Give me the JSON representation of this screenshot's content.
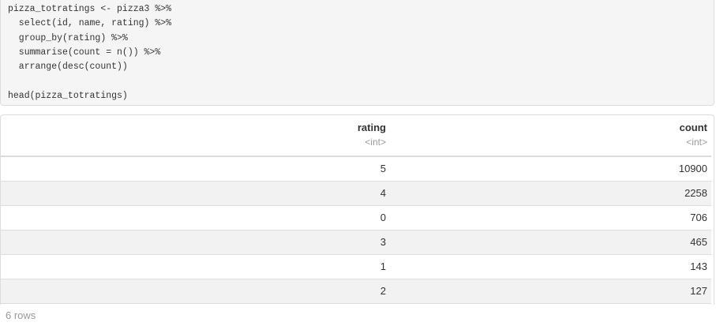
{
  "code": "pizza_totratings <- pizza3 %>%\n  select(id, name, rating) %>%\n  group_by(rating) %>%\n  summarise(count = n()) %>%\n  arrange(desc(count))\n\nhead(pizza_totratings)",
  "table": {
    "columns": [
      {
        "name": "rating",
        "type": "<int>"
      },
      {
        "name": "count",
        "type": "<int>"
      }
    ],
    "rows": [
      [
        "5",
        "10900"
      ],
      [
        "4",
        "2258"
      ],
      [
        "0",
        "706"
      ],
      [
        "3",
        "465"
      ],
      [
        "1",
        "143"
      ],
      [
        "2",
        "127"
      ]
    ]
  },
  "footer": "6 rows"
}
